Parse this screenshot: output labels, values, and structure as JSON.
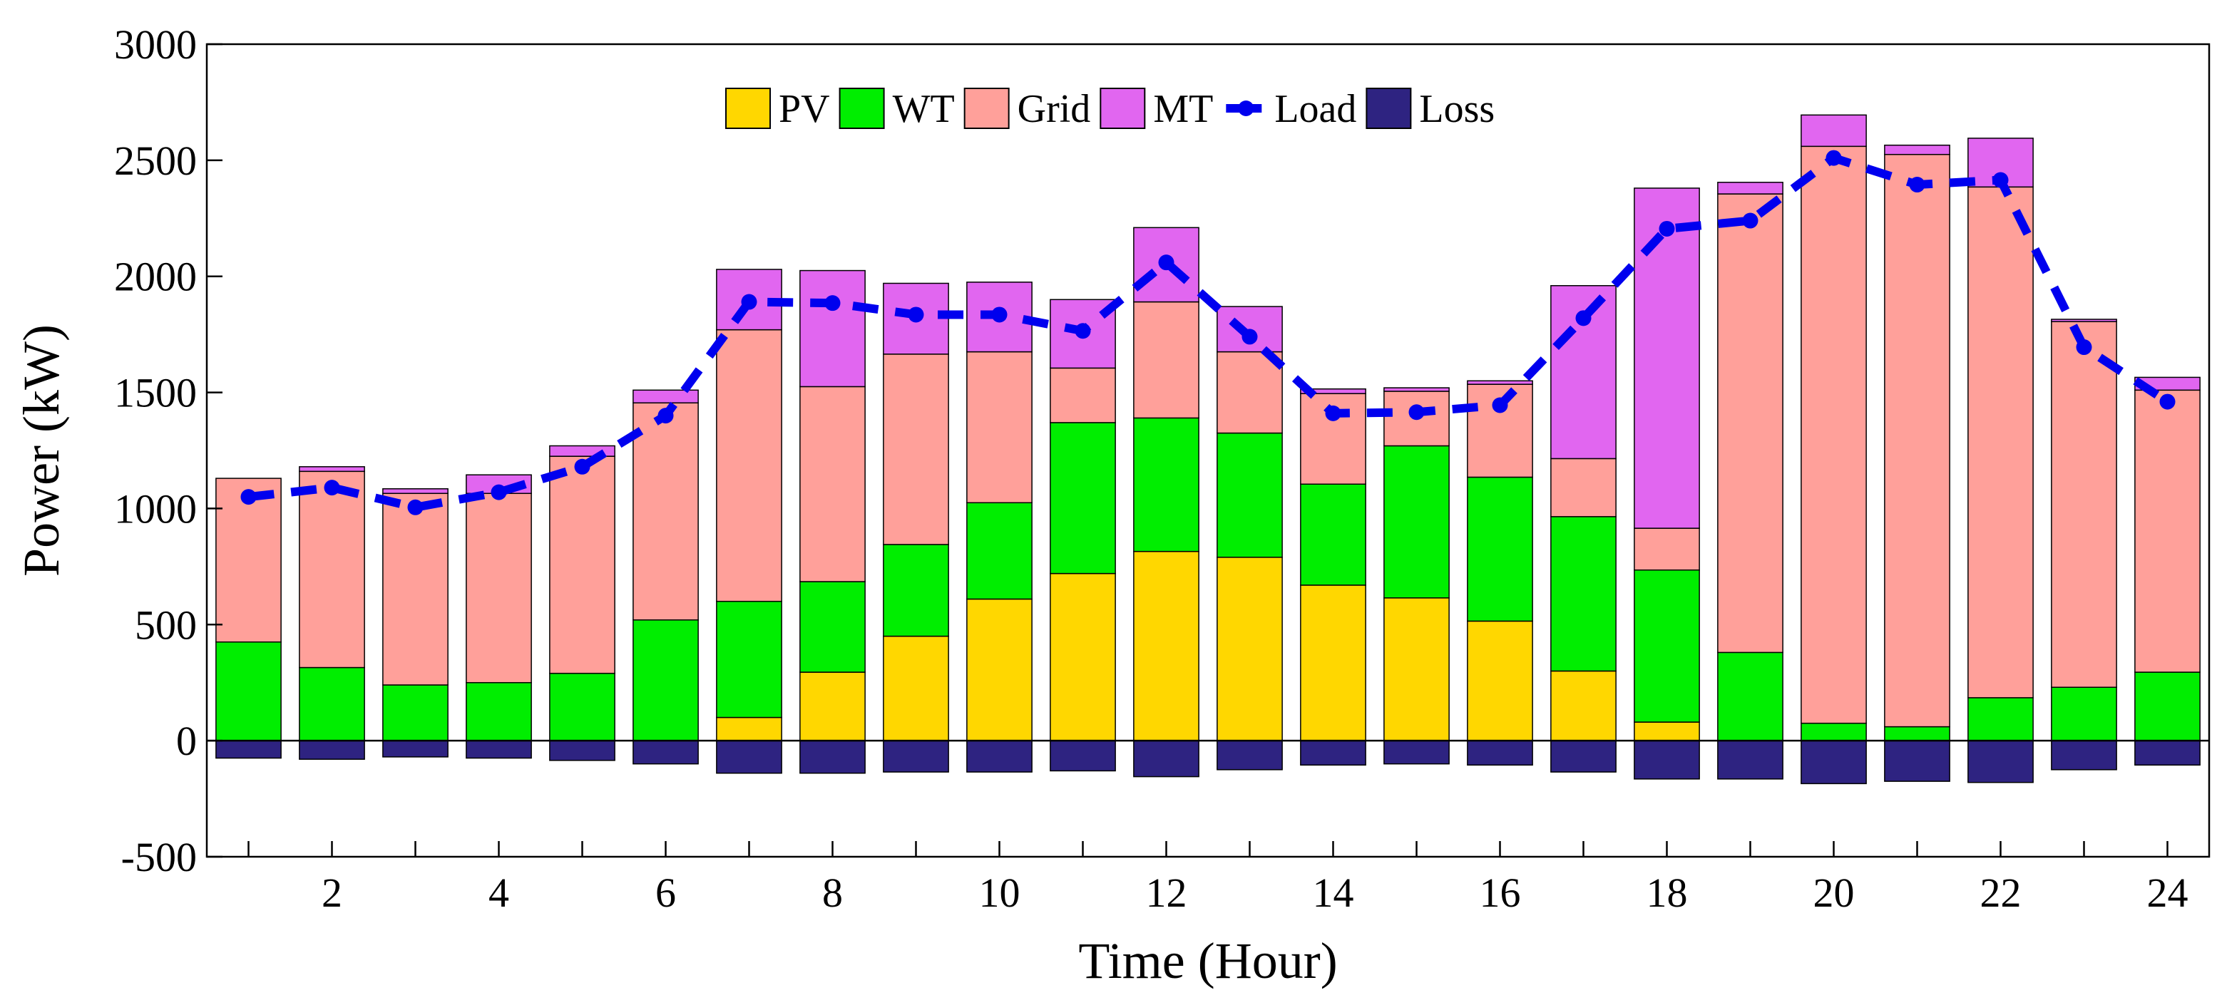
{
  "chart_data": {
    "type": "bar",
    "stacked": true,
    "title": "",
    "xlabel": "Time (Hour)",
    "ylabel": "Power (kW)",
    "xlim": [
      0.5,
      24.5
    ],
    "ylim": [
      -500,
      3000
    ],
    "x_ticks": [
      2,
      4,
      6,
      8,
      10,
      12,
      14,
      16,
      18,
      20,
      22,
      24
    ],
    "y_ticks": [
      -500,
      0,
      500,
      1000,
      1500,
      2000,
      2500,
      3000
    ],
    "grid": false,
    "legend_position": "top-center",
    "categories": [
      1,
      2,
      3,
      4,
      5,
      6,
      7,
      8,
      9,
      10,
      11,
      12,
      13,
      14,
      15,
      16,
      17,
      18,
      19,
      20,
      21,
      22,
      23,
      24
    ],
    "series": [
      {
        "name": "PV",
        "kind": "bar",
        "color": "#FFD700",
        "values": [
          0,
          0,
          0,
          0,
          0,
          0,
          100,
          295,
          450,
          610,
          720,
          815,
          790,
          670,
          615,
          515,
          300,
          80,
          0,
          0,
          0,
          0,
          0,
          0
        ]
      },
      {
        "name": "WT",
        "kind": "bar",
        "color": "#00EE00",
        "values": [
          425,
          315,
          240,
          250,
          290,
          520,
          500,
          390,
          395,
          415,
          650,
          575,
          535,
          435,
          655,
          620,
          665,
          655,
          380,
          75,
          60,
          185,
          230,
          295
        ]
      },
      {
        "name": "Grid",
        "kind": "bar",
        "color": "#FFA09A",
        "values": [
          705,
          845,
          825,
          815,
          935,
          935,
          1170,
          840,
          820,
          650,
          235,
          500,
          350,
          390,
          235,
          400,
          250,
          180,
          1975,
          2485,
          2465,
          2200,
          1575,
          1215
        ]
      },
      {
        "name": "MT",
        "kind": "bar",
        "color": "#E166F0",
        "values": [
          0,
          20,
          20,
          80,
          45,
          55,
          260,
          500,
          305,
          300,
          295,
          320,
          195,
          20,
          15,
          15,
          745,
          1465,
          50,
          135,
          40,
          210,
          10,
          55
        ]
      },
      {
        "name": "Load",
        "kind": "line",
        "color": "#0000EE",
        "values": [
          1050,
          1090,
          1005,
          1070,
          1180,
          1400,
          1890,
          1885,
          1835,
          1835,
          1765,
          2060,
          1740,
          1410,
          1415,
          1445,
          1820,
          2205,
          2240,
          2510,
          2395,
          2415,
          1695,
          1460
        ]
      },
      {
        "name": "Loss",
        "kind": "bar",
        "color": "#2E2381",
        "values": [
          -75,
          -80,
          -70,
          -75,
          -85,
          -100,
          -140,
          -140,
          -135,
          -135,
          -130,
          -155,
          -125,
          -105,
          -100,
          -105,
          -135,
          -165,
          -165,
          -185,
          -175,
          -180,
          -125,
          -105
        ]
      }
    ]
  }
}
